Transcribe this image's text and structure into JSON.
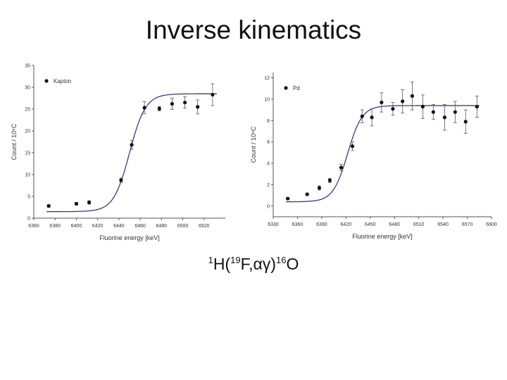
{
  "slide": {
    "title": "Inverse kinematics",
    "caption": {
      "p1": "1",
      "p2": "H(",
      "p3": "19",
      "p4": "F,αγ)",
      "p5": "16",
      "p6": "O"
    }
  },
  "chart_data": [
    {
      "type": "scatter",
      "legend": "Kapton",
      "xlabel": "Fluorine energy [keV]",
      "ylabel": "Count / 10⁶C",
      "xlim": [
        6360,
        6540
      ],
      "ylim": [
        0,
        35
      ],
      "xticks": [
        6360,
        6380,
        6400,
        6420,
        6440,
        6460,
        6480,
        6500,
        6520
      ],
      "yticks": [
        0,
        5,
        10,
        15,
        20,
        25,
        30,
        35
      ],
      "points": [
        {
          "x": 6374,
          "y": 2.8,
          "err": 0.3
        },
        {
          "x": 6400,
          "y": 3.3,
          "err": 0.3
        },
        {
          "x": 6412,
          "y": 3.6,
          "err": 0.4
        },
        {
          "x": 6442,
          "y": 8.7,
          "err": 0.5
        },
        {
          "x": 6452,
          "y": 16.8,
          "err": 1.0
        },
        {
          "x": 6464,
          "y": 25.3,
          "err": 1.4
        },
        {
          "x": 6478,
          "y": 25.1,
          "err": 0.5
        },
        {
          "x": 6490,
          "y": 26.2,
          "err": 1.3
        },
        {
          "x": 6502,
          "y": 26.5,
          "err": 1.3
        },
        {
          "x": 6514,
          "y": 25.5,
          "err": 1.6
        },
        {
          "x": 6528,
          "y": 28.3,
          "err": 2.5
        }
      ],
      "fit": {
        "base": 1.5,
        "amp": 27.0,
        "center": 6450,
        "width": 7.5,
        "xmin": 6372,
        "xmax": 6532
      }
    },
    {
      "type": "scatter",
      "legend": "Pd",
      "xlabel": "Fluorine energy [keV]",
      "ylabel": "Count / 10⁶C",
      "xlim": [
        6330,
        6600
      ],
      "ylim": [
        -1,
        12.5
      ],
      "xticks": [
        6330,
        6360,
        6390,
        6420,
        6450,
        6480,
        6510,
        6540,
        6570,
        6600
      ],
      "yticks": [
        0,
        2,
        4,
        6,
        8,
        10,
        12
      ],
      "points": [
        {
          "x": 6348,
          "y": 0.7,
          "err": 0.1
        },
        {
          "x": 6372,
          "y": 1.1,
          "err": 0.1
        },
        {
          "x": 6387,
          "y": 1.7,
          "err": 0.2
        },
        {
          "x": 6400,
          "y": 2.4,
          "err": 0.2
        },
        {
          "x": 6414,
          "y": 3.6,
          "err": 0.3
        },
        {
          "x": 6428,
          "y": 5.6,
          "err": 0.4
        },
        {
          "x": 6440,
          "y": 8.4,
          "err": 0.6
        },
        {
          "x": 6452,
          "y": 8.3,
          "err": 0.8
        },
        {
          "x": 6464,
          "y": 9.7,
          "err": 0.9
        },
        {
          "x": 6478,
          "y": 9.1,
          "err": 0.6
        },
        {
          "x": 6490,
          "y": 9.8,
          "err": 1.1
        },
        {
          "x": 6502,
          "y": 10.3,
          "err": 1.3
        },
        {
          "x": 6515,
          "y": 9.3,
          "err": 1.1
        },
        {
          "x": 6528,
          "y": 8.8,
          "err": 0.7
        },
        {
          "x": 6542,
          "y": 8.3,
          "err": 1.2
        },
        {
          "x": 6555,
          "y": 8.8,
          "err": 1.0
        },
        {
          "x": 6568,
          "y": 7.9,
          "err": 1.1
        },
        {
          "x": 6582,
          "y": 9.3,
          "err": 1.0
        }
      ],
      "fit": {
        "base": 0.4,
        "amp": 9.0,
        "center": 6422,
        "width": 9.0,
        "xmin": 6346,
        "xmax": 6585
      }
    }
  ],
  "colors": {
    "fit": "#3a3a8c",
    "marker": "#111111",
    "axis": "#555555"
  }
}
